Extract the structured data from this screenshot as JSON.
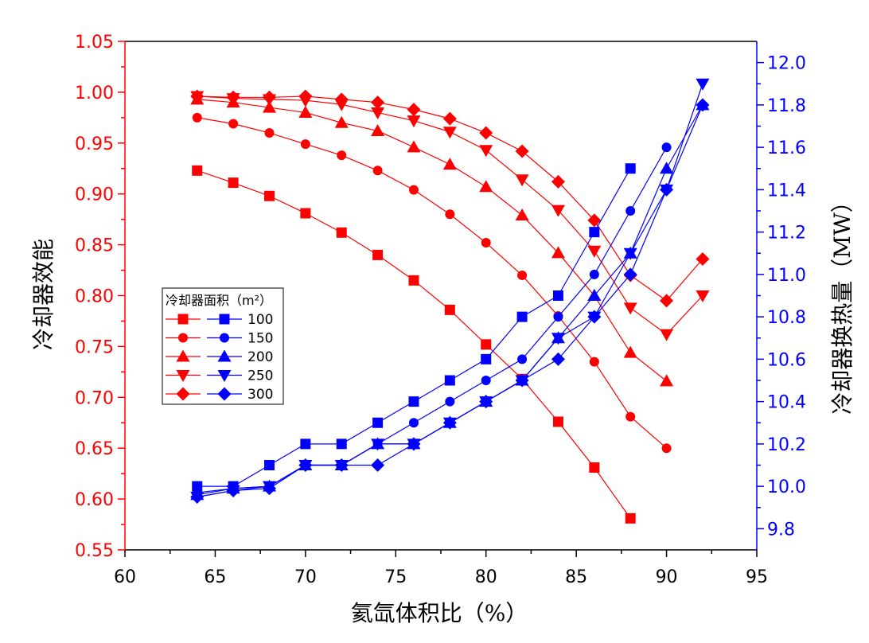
{
  "chart_data": {
    "type": "line",
    "xlabel": "氦氙体积比（%）",
    "ylabel_left": "冷却器效能",
    "ylabel_right": "冷却器换热量（MW）",
    "xlim": [
      60,
      95
    ],
    "x_ticks": [
      60,
      65,
      70,
      75,
      80,
      85,
      90,
      95
    ],
    "ylim_left": [
      0.55,
      1.05
    ],
    "y_ticks_left": [
      "0.55",
      "0.60",
      "0.65",
      "0.70",
      "0.75",
      "0.80",
      "0.85",
      "0.90",
      "0.95",
      "1.00",
      "1.05"
    ],
    "ylim_right": [
      9.7,
      12.1
    ],
    "y_ticks_right": [
      "9.8",
      "10.0",
      "10.2",
      "10.4",
      "10.6",
      "10.8",
      "11.0",
      "11.2",
      "11.4",
      "11.6",
      "11.8",
      "12.0"
    ],
    "legend_title": "冷却器面积（m²）",
    "legend_position": "left-middle",
    "colors": {
      "left": "#ff0000",
      "right": "#0000ff"
    },
    "efficiency_series": [
      {
        "name": "100",
        "marker": "square",
        "x": [
          64,
          66,
          68,
          70,
          72,
          74,
          76,
          78,
          80,
          82,
          84,
          86,
          88
        ],
        "y": [
          0.923,
          0.911,
          0.898,
          0.881,
          0.862,
          0.84,
          0.815,
          0.786,
          0.752,
          0.718,
          0.676,
          0.631,
          0.581
        ]
      },
      {
        "name": "150",
        "marker": "circle",
        "x": [
          64,
          66,
          68,
          70,
          72,
          74,
          76,
          78,
          80,
          82,
          84,
          86,
          88,
          90
        ],
        "y": [
          0.975,
          0.969,
          0.96,
          0.949,
          0.938,
          0.923,
          0.904,
          0.88,
          0.852,
          0.82,
          0.78,
          0.735,
          0.681,
          0.65
        ]
      },
      {
        "name": "200",
        "marker": "triangle-up",
        "x": [
          64,
          66,
          68,
          70,
          72,
          74,
          76,
          78,
          80,
          82,
          84,
          86,
          88,
          90
        ],
        "y": [
          0.993,
          0.99,
          0.985,
          0.98,
          0.97,
          0.962,
          0.946,
          0.929,
          0.907,
          0.879,
          0.842,
          0.8,
          0.744,
          0.716
        ]
      },
      {
        "name": "250",
        "marker": "triangle-down",
        "x": [
          64,
          66,
          68,
          70,
          72,
          74,
          76,
          78,
          80,
          82,
          84,
          86,
          88,
          90,
          92
        ],
        "y": [
          0.996,
          0.994,
          0.993,
          0.992,
          0.988,
          0.98,
          0.972,
          0.961,
          0.943,
          0.914,
          0.884,
          0.844,
          0.788,
          0.762,
          0.8
        ]
      },
      {
        "name": "300",
        "marker": "diamond",
        "x": [
          64,
          66,
          68,
          70,
          72,
          74,
          76,
          78,
          80,
          82,
          84,
          86,
          88,
          90,
          92
        ],
        "y": [
          0.996,
          0.995,
          0.995,
          0.996,
          0.993,
          0.99,
          0.983,
          0.974,
          0.96,
          0.942,
          0.912,
          0.874,
          0.82,
          0.795,
          0.836
        ]
      }
    ],
    "heat_series": [
      {
        "name": "100",
        "marker": "square",
        "x": [
          64,
          66,
          68,
          70,
          72,
          74,
          76,
          78,
          80,
          82,
          84,
          86,
          88
        ],
        "y": [
          10.0,
          10.0,
          10.1,
          10.2,
          10.2,
          10.3,
          10.4,
          10.5,
          10.6,
          10.8,
          10.9,
          11.2,
          11.5
        ]
      },
      {
        "name": "150",
        "marker": "circle",
        "x": [
          64,
          66,
          68,
          70,
          72,
          74,
          76,
          78,
          80,
          82,
          84,
          86,
          88,
          90
        ],
        "y": [
          9.97,
          9.99,
          10.0,
          10.1,
          10.1,
          10.2,
          10.3,
          10.4,
          10.5,
          10.6,
          10.8,
          11.0,
          11.3,
          11.6
        ]
      },
      {
        "name": "200",
        "marker": "triangle-up",
        "x": [
          64,
          66,
          68,
          70,
          72,
          74,
          76,
          78,
          80,
          82,
          84,
          86,
          88,
          90,
          92
        ],
        "y": [
          9.96,
          9.99,
          10.0,
          10.1,
          10.1,
          10.2,
          10.2,
          10.3,
          10.4,
          10.5,
          10.7,
          10.9,
          11.1,
          11.5,
          11.8
        ]
      },
      {
        "name": "250",
        "marker": "triangle-down",
        "x": [
          64,
          66,
          68,
          70,
          72,
          74,
          76,
          78,
          80,
          82,
          84,
          86,
          88,
          90,
          92
        ],
        "y": [
          9.95,
          9.98,
          10.0,
          10.1,
          10.1,
          10.2,
          10.2,
          10.3,
          10.4,
          10.5,
          10.7,
          10.8,
          11.1,
          11.4,
          11.9
        ]
      },
      {
        "name": "300",
        "marker": "diamond",
        "x": [
          64,
          66,
          68,
          70,
          72,
          74,
          76,
          78,
          80,
          82,
          84,
          86,
          88,
          90,
          92
        ],
        "y": [
          9.95,
          9.98,
          9.99,
          10.1,
          10.1,
          10.1,
          10.2,
          10.3,
          10.4,
          10.5,
          10.6,
          10.8,
          11.0,
          11.4,
          11.8
        ]
      }
    ]
  }
}
